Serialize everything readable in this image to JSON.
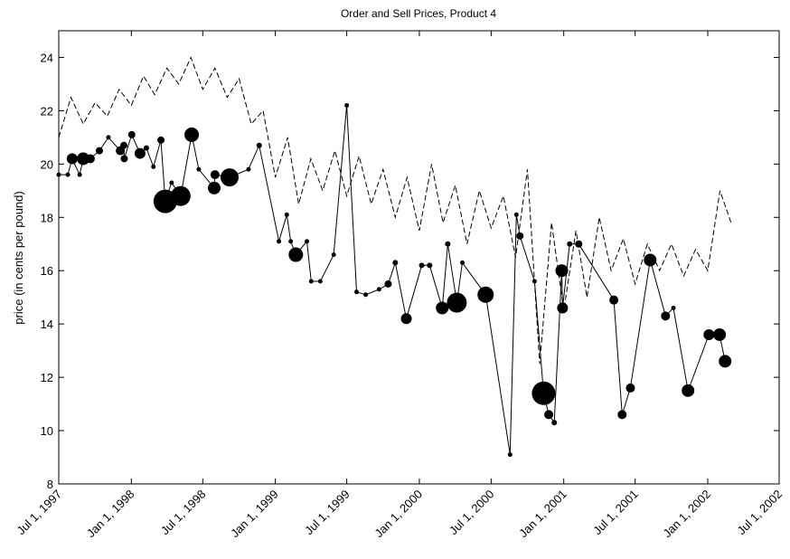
{
  "chart_data": {
    "type": "line",
    "title": "Order and Sell Prices, Product 4",
    "ylabel": "price (in cents per pound)",
    "ylim": [
      8,
      25
    ],
    "yticks": [
      8,
      10,
      12,
      14,
      16,
      18,
      20,
      22,
      24
    ],
    "xlim": [
      "1997-07-01",
      "2002-07-01"
    ],
    "xticks": [
      {
        "value": "1997-07-01",
        "label": "Jul 1, 1997"
      },
      {
        "value": "1998-01-01",
        "label": "Jan 1, 1998"
      },
      {
        "value": "1998-07-01",
        "label": "Jul 1, 1998"
      },
      {
        "value": "1999-01-01",
        "label": "Jan 1, 1999"
      },
      {
        "value": "1999-07-01",
        "label": "Jul 1, 1999"
      },
      {
        "value": "2000-01-01",
        "label": "Jan 1, 2000"
      },
      {
        "value": "2000-07-01",
        "label": "Jul 1, 2000"
      },
      {
        "value": "2001-01-01",
        "label": "Jan 1, 2001"
      },
      {
        "value": "2001-07-01",
        "label": "Jul 1, 2001"
      },
      {
        "value": "2002-01-01",
        "label": "Jan 1, 2002"
      },
      {
        "value": "2002-07-01",
        "label": "Jul 1, 2002"
      }
    ],
    "series": [
      {
        "style": "dashed",
        "color": "#000000",
        "x": [
          "1997-07-01",
          "1997-08-01",
          "1997-09-01",
          "1997-10-01",
          "1997-11-01",
          "1997-12-01",
          "1998-01-01",
          "1998-02-01",
          "1998-03-01",
          "1998-04-01",
          "1998-05-01",
          "1998-06-01",
          "1998-07-01",
          "1998-08-01",
          "1998-09-01",
          "1998-10-01",
          "1998-11-01",
          "1998-12-01",
          "1999-01-01",
          "1999-02-01",
          "1999-03-01",
          "1999-04-01",
          "1999-05-01",
          "1999-06-01",
          "1999-07-01",
          "1999-08-01",
          "1999-09-01",
          "1999-10-01",
          "1999-11-01",
          "1999-12-01",
          "2000-01-01",
          "2000-02-01",
          "2000-03-01",
          "2000-04-01",
          "2000-05-01",
          "2000-06-01",
          "2000-07-01",
          "2000-08-01",
          "2000-09-01",
          "2000-10-01",
          "2000-11-01",
          "2000-12-01",
          "2001-01-01",
          "2001-02-01",
          "2001-03-01",
          "2001-04-01",
          "2001-05-01",
          "2001-06-01",
          "2001-07-01",
          "2001-08-01",
          "2001-09-01",
          "2001-10-01",
          "2001-11-01",
          "2001-12-01",
          "2002-01-01",
          "2002-02-01",
          "2002-03-01"
        ],
        "values": [
          21.0,
          22.5,
          21.5,
          22.3,
          21.8,
          22.8,
          22.2,
          23.3,
          22.6,
          23.6,
          23.0,
          24.0,
          22.8,
          23.6,
          22.5,
          23.2,
          21.5,
          22.0,
          19.5,
          21.0,
          18.5,
          20.2,
          19.0,
          20.5,
          18.8,
          20.3,
          18.5,
          19.8,
          18.0,
          19.5,
          17.5,
          20.0,
          17.8,
          19.2,
          17.0,
          19.0,
          17.6,
          18.8,
          16.5,
          19.8,
          12.5,
          17.8,
          14.5,
          17.5,
          15.0,
          18.0,
          16.0,
          17.2,
          15.5,
          17.0,
          16.0,
          17.0,
          15.8,
          16.8,
          16.0,
          19.0,
          17.8
        ]
      },
      {
        "style": "solid",
        "marker": "bubble",
        "color": "#000000",
        "x": [
          "1997-07-01",
          "1997-07-24",
          "1997-08-04",
          "1997-08-23",
          "1997-09-01",
          "1997-09-19",
          "1997-10-12",
          "1997-11-04",
          "1997-12-04",
          "1997-12-13",
          "1997-12-14",
          "1998-01-02",
          "1998-01-23",
          "1998-02-08",
          "1998-02-26",
          "1998-03-17",
          "1998-03-28",
          "1998-04-13",
          "1998-05-06",
          "1998-06-03",
          "1998-06-21",
          "1998-07-30",
          "1998-08-01",
          "1998-09-07",
          "1998-10-25",
          "1998-11-21",
          "1999-01-10",
          "1999-01-30",
          "1999-02-09",
          "1999-02-22",
          "1999-03-22",
          "1999-04-02",
          "1999-04-25",
          "1999-05-29",
          "1999-07-01",
          "1999-07-26",
          "1999-08-18",
          "1999-09-21",
          "1999-10-14",
          "1999-11-01",
          "1999-11-29",
          "2000-01-07",
          "2000-01-27",
          "2000-02-28",
          "2000-03-13",
          "2000-04-05",
          "2000-04-19",
          "2000-06-17",
          "2000-08-18",
          "2000-09-03",
          "2000-09-12",
          "2000-10-19",
          "2000-11-11",
          "2000-11-24",
          "2000-12-08",
          "2000-12-27",
          "2000-12-29",
          "2001-01-16",
          "2001-02-08",
          "2001-05-08",
          "2001-05-29",
          "2001-06-19",
          "2001-08-08",
          "2001-09-16",
          "2001-10-06",
          "2001-11-12",
          "2002-01-04",
          "2002-01-31",
          "2002-02-14"
        ],
        "values": [
          19.6,
          19.6,
          20.2,
          19.6,
          20.2,
          20.2,
          20.5,
          21.0,
          20.5,
          20.7,
          20.2,
          21.1,
          20.4,
          20.6,
          19.9,
          20.9,
          18.6,
          19.3,
          18.8,
          21.1,
          19.8,
          19.1,
          19.6,
          19.5,
          19.8,
          20.7,
          17.1,
          18.1,
          17.1,
          16.6,
          17.1,
          15.6,
          15.6,
          16.6,
          22.2,
          15.2,
          15.1,
          15.3,
          15.5,
          16.3,
          14.2,
          16.2,
          16.2,
          14.6,
          17.0,
          14.8,
          16.3,
          15.1,
          9.1,
          18.1,
          17.3,
          15.6,
          11.4,
          10.6,
          10.3,
          16.0,
          14.6,
          17.0,
          17.0,
          14.9,
          10.6,
          11.6,
          16.4,
          14.3,
          14.6,
          11.5,
          13.6,
          13.6,
          12.6
        ],
        "sizes": [
          2.5,
          2.5,
          6,
          2.5,
          7,
          5,
          4,
          2.5,
          5,
          4,
          4,
          4,
          6,
          3,
          2.5,
          4,
          13,
          2.5,
          11,
          8,
          2.5,
          7,
          5,
          10,
          2.5,
          3,
          2.5,
          2.5,
          2.5,
          8,
          2.5,
          2.5,
          2.5,
          2.5,
          2.5,
          2.5,
          2.5,
          2.5,
          4,
          3,
          6,
          3,
          3,
          7,
          3,
          11,
          2.5,
          9,
          2.5,
          2.5,
          4,
          2.5,
          13,
          5,
          3,
          7,
          6,
          3,
          4,
          5,
          5,
          5,
          7,
          5,
          2.5,
          7,
          6,
          7,
          7
        ]
      }
    ]
  }
}
